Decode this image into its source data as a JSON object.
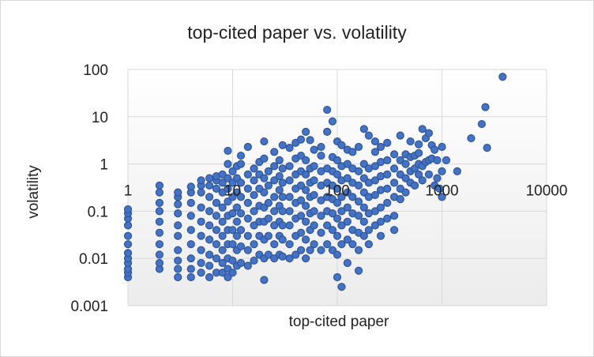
{
  "chart_data": {
    "type": "scatter",
    "title": "top-cited paper vs. volatility",
    "xlabel": "top-cited paper",
    "ylabel": "volatility",
    "xscale": "log",
    "yscale": "log",
    "xlim": [
      1,
      10000
    ],
    "ylim": [
      0.001,
      100
    ],
    "x_tick_labels": [
      "1",
      "10",
      "100",
      "1000",
      "10000"
    ],
    "y_tick_labels": [
      "0.001",
      "0.01",
      "0.1",
      "1",
      "10",
      "100"
    ],
    "grid": true,
    "legend": "none",
    "marker_color": "#4472C4",
    "marker_edge_color": "#2F5597",
    "points": [
      [
        1,
        0.004
      ],
      [
        1,
        0.005
      ],
      [
        1,
        0.006
      ],
      [
        1,
        0.008
      ],
      [
        1,
        0.01
      ],
      [
        1,
        0.013
      ],
      [
        1,
        0.02
      ],
      [
        1,
        0.03
      ],
      [
        1,
        0.05
      ],
      [
        1,
        0.07
      ],
      [
        1,
        0.09
      ],
      [
        1,
        0.11
      ],
      [
        2,
        0.006
      ],
      [
        2,
        0.008
      ],
      [
        2,
        0.012
      ],
      [
        2,
        0.02
      ],
      [
        2,
        0.035
      ],
      [
        2,
        0.06
      ],
      [
        2,
        0.1
      ],
      [
        2,
        0.15
      ],
      [
        2,
        0.25
      ],
      [
        2,
        0.35
      ],
      [
        3,
        0.004
      ],
      [
        3,
        0.006
      ],
      [
        3,
        0.009
      ],
      [
        3,
        0.015
      ],
      [
        3,
        0.03
      ],
      [
        3,
        0.05
      ],
      [
        3,
        0.09
      ],
      [
        3,
        0.14
      ],
      [
        3,
        0.2
      ],
      [
        3,
        0.25
      ],
      [
        4,
        0.004
      ],
      [
        4,
        0.006
      ],
      [
        4,
        0.01
      ],
      [
        4,
        0.02
      ],
      [
        4,
        0.04
      ],
      [
        4,
        0.08
      ],
      [
        4,
        0.15
      ],
      [
        4,
        0.25
      ],
      [
        4,
        0.33
      ],
      [
        5,
        0.005
      ],
      [
        5,
        0.008
      ],
      [
        5,
        0.015
      ],
      [
        5,
        0.03
      ],
      [
        5,
        0.06
      ],
      [
        5,
        0.12
      ],
      [
        5,
        0.25
      ],
      [
        5,
        0.35
      ],
      [
        5,
        0.45
      ],
      [
        6,
        0.004
      ],
      [
        6,
        0.007
      ],
      [
        6,
        0.012
      ],
      [
        6,
        0.025
      ],
      [
        6,
        0.05
      ],
      [
        6,
        0.1
      ],
      [
        6,
        0.2
      ],
      [
        6,
        0.35
      ],
      [
        6,
        0.5
      ],
      [
        7,
        0.005
      ],
      [
        7,
        0.01
      ],
      [
        7,
        0.02
      ],
      [
        7,
        0.04
      ],
      [
        7,
        0.08
      ],
      [
        7,
        0.15
      ],
      [
        7,
        0.3
      ],
      [
        7,
        0.45
      ],
      [
        7,
        0.55
      ],
      [
        8,
        0.005
      ],
      [
        8,
        0.008
      ],
      [
        8,
        0.015
      ],
      [
        8,
        0.03
      ],
      [
        8,
        0.06
      ],
      [
        8,
        0.12
      ],
      [
        8,
        0.25
      ],
      [
        8,
        0.4
      ],
      [
        8,
        0.6
      ],
      [
        9,
        0.004
      ],
      [
        9,
        0.006
      ],
      [
        9,
        0.01
      ],
      [
        9,
        0.02
      ],
      [
        9,
        0.04
      ],
      [
        9,
        0.08
      ],
      [
        9,
        0.16
      ],
      [
        9,
        0.3
      ],
      [
        9,
        0.5
      ],
      [
        9,
        1.0
      ],
      [
        9,
        1.9
      ],
      [
        10,
        0.005
      ],
      [
        10,
        0.009
      ],
      [
        10,
        0.02
      ],
      [
        10,
        0.04
      ],
      [
        10,
        0.09
      ],
      [
        10,
        0.2
      ],
      [
        10,
        0.4
      ],
      [
        10,
        0.7
      ],
      [
        11,
        0.007
      ],
      [
        11,
        0.015
      ],
      [
        11,
        0.03
      ],
      [
        11,
        0.06
      ],
      [
        11,
        0.12
      ],
      [
        11,
        0.25
      ],
      [
        11,
        0.5
      ],
      [
        11,
        0.9
      ],
      [
        12,
        0.008
      ],
      [
        12,
        0.018
      ],
      [
        12,
        0.04
      ],
      [
        12,
        0.09
      ],
      [
        12,
        0.2
      ],
      [
        12,
        0.4
      ],
      [
        12,
        1.0
      ],
      [
        12,
        1.5
      ],
      [
        14,
        0.007
      ],
      [
        14,
        0.015
      ],
      [
        14,
        0.03
      ],
      [
        14,
        0.07
      ],
      [
        14,
        0.15
      ],
      [
        14,
        0.3
      ],
      [
        14,
        0.6
      ],
      [
        14,
        2.3
      ],
      [
        16,
        0.009
      ],
      [
        16,
        0.02
      ],
      [
        16,
        0.05
      ],
      [
        16,
        0.1
      ],
      [
        16,
        0.22
      ],
      [
        16,
        0.45
      ],
      [
        16,
        0.8
      ],
      [
        18,
        0.012
      ],
      [
        18,
        0.03
      ],
      [
        18,
        0.06
      ],
      [
        18,
        0.13
      ],
      [
        18,
        0.3
      ],
      [
        18,
        0.6
      ],
      [
        18,
        1.1
      ],
      [
        20,
        0.0035
      ],
      [
        20,
        0.01
      ],
      [
        20,
        0.025
      ],
      [
        20,
        0.06
      ],
      [
        20,
        0.12
      ],
      [
        20,
        0.25
      ],
      [
        20,
        0.5
      ],
      [
        20,
        1.3
      ],
      [
        20,
        3.0
      ],
      [
        22,
        0.012
      ],
      [
        22,
        0.03
      ],
      [
        22,
        0.07
      ],
      [
        22,
        0.15
      ],
      [
        22,
        0.35
      ],
      [
        22,
        0.7
      ],
      [
        25,
        0.01
      ],
      [
        25,
        0.02
      ],
      [
        25,
        0.05
      ],
      [
        25,
        0.1
      ],
      [
        25,
        0.2
      ],
      [
        25,
        0.45
      ],
      [
        25,
        0.9
      ],
      [
        25,
        1.8
      ],
      [
        28,
        0.012
      ],
      [
        28,
        0.03
      ],
      [
        28,
        0.06
      ],
      [
        28,
        0.13
      ],
      [
        28,
        0.28
      ],
      [
        28,
        0.55
      ],
      [
        28,
        1.2
      ],
      [
        30,
        0.011
      ],
      [
        30,
        0.025
      ],
      [
        30,
        0.05
      ],
      [
        30,
        0.1
      ],
      [
        30,
        0.2
      ],
      [
        30,
        0.4
      ],
      [
        30,
        0.8
      ],
      [
        30,
        2.5
      ],
      [
        35,
        0.01
      ],
      [
        35,
        0.02
      ],
      [
        35,
        0.05
      ],
      [
        35,
        0.1
      ],
      [
        35,
        0.2
      ],
      [
        35,
        0.45
      ],
      [
        35,
        0.9
      ],
      [
        35,
        2.2
      ],
      [
        40,
        0.012
      ],
      [
        40,
        0.03
      ],
      [
        40,
        0.07
      ],
      [
        40,
        0.15
      ],
      [
        40,
        0.3
      ],
      [
        40,
        0.6
      ],
      [
        40,
        1.3
      ],
      [
        40,
        2.8
      ],
      [
        45,
        0.015
      ],
      [
        45,
        0.035
      ],
      [
        45,
        0.08
      ],
      [
        45,
        0.17
      ],
      [
        45,
        0.35
      ],
      [
        45,
        0.7
      ],
      [
        45,
        1.5
      ],
      [
        45,
        3.3
      ],
      [
        50,
        0.01
      ],
      [
        50,
        0.025
      ],
      [
        50,
        0.06
      ],
      [
        50,
        0.13
      ],
      [
        50,
        0.28
      ],
      [
        50,
        0.6
      ],
      [
        50,
        1.2
      ],
      [
        50,
        4.8
      ],
      [
        55,
        0.015
      ],
      [
        55,
        0.04
      ],
      [
        55,
        0.09
      ],
      [
        55,
        0.2
      ],
      [
        55,
        0.4
      ],
      [
        55,
        0.8
      ],
      [
        55,
        3.2
      ],
      [
        60,
        0.02
      ],
      [
        60,
        0.05
      ],
      [
        60,
        0.1
      ],
      [
        60,
        0.22
      ],
      [
        60,
        0.45
      ],
      [
        60,
        0.9
      ],
      [
        60,
        2.0
      ],
      [
        70,
        0.015
      ],
      [
        70,
        0.035
      ],
      [
        70,
        0.08
      ],
      [
        70,
        0.17
      ],
      [
        70,
        0.35
      ],
      [
        70,
        0.7
      ],
      [
        70,
        1.5
      ],
      [
        70,
        2.3
      ],
      [
        80,
        0.02
      ],
      [
        80,
        0.05
      ],
      [
        80,
        0.1
      ],
      [
        80,
        0.2
      ],
      [
        80,
        0.4
      ],
      [
        80,
        0.8
      ],
      [
        80,
        4.8
      ],
      [
        80,
        14.0
      ],
      [
        90,
        0.015
      ],
      [
        90,
        0.04
      ],
      [
        90,
        0.09
      ],
      [
        90,
        0.18
      ],
      [
        90,
        0.35
      ],
      [
        90,
        0.7
      ],
      [
        90,
        1.4
      ],
      [
        90,
        8.0
      ],
      [
        100,
        0.004
      ],
      [
        100,
        0.012
      ],
      [
        100,
        0.03
      ],
      [
        100,
        0.07
      ],
      [
        100,
        0.15
      ],
      [
        100,
        0.3
      ],
      [
        100,
        0.6
      ],
      [
        100,
        1.2
      ],
      [
        100,
        3.0
      ],
      [
        110,
        0.0025
      ],
      [
        110,
        0.02
      ],
      [
        110,
        0.05
      ],
      [
        110,
        0.1
      ],
      [
        110,
        0.2
      ],
      [
        110,
        0.45
      ],
      [
        110,
        0.9
      ],
      [
        110,
        2.5
      ],
      [
        125,
        0.008
      ],
      [
        125,
        0.025
      ],
      [
        125,
        0.06
      ],
      [
        125,
        0.12
      ],
      [
        125,
        0.25
      ],
      [
        125,
        0.5
      ],
      [
        125,
        1.0
      ],
      [
        125,
        2.0
      ],
      [
        140,
        0.02
      ],
      [
        140,
        0.04
      ],
      [
        140,
        0.09
      ],
      [
        140,
        0.2
      ],
      [
        140,
        0.4
      ],
      [
        140,
        0.8
      ],
      [
        140,
        1.8
      ],
      [
        160,
        0.0055
      ],
      [
        160,
        0.015
      ],
      [
        160,
        0.035
      ],
      [
        160,
        0.08
      ],
      [
        160,
        0.16
      ],
      [
        160,
        0.35
      ],
      [
        160,
        0.7
      ],
      [
        160,
        2.3
      ],
      [
        180,
        0.03
      ],
      [
        180,
        0.06
      ],
      [
        180,
        0.12
      ],
      [
        180,
        0.25
      ],
      [
        180,
        0.5
      ],
      [
        180,
        1.0
      ],
      [
        180,
        5.5
      ],
      [
        200,
        0.02
      ],
      [
        200,
        0.04
      ],
      [
        200,
        0.09
      ],
      [
        200,
        0.2
      ],
      [
        200,
        0.4
      ],
      [
        200,
        0.8
      ],
      [
        200,
        4.0
      ],
      [
        230,
        0.05
      ],
      [
        230,
        0.1
      ],
      [
        230,
        0.22
      ],
      [
        230,
        0.45
      ],
      [
        230,
        0.9
      ],
      [
        230,
        1.8
      ],
      [
        230,
        3.0
      ],
      [
        260,
        0.03
      ],
      [
        260,
        0.06
      ],
      [
        260,
        0.12
      ],
      [
        260,
        0.28
      ],
      [
        260,
        0.55
      ],
      [
        260,
        1.1
      ],
      [
        260,
        2.3
      ],
      [
        300,
        0.07
      ],
      [
        300,
        0.15
      ],
      [
        300,
        0.3
      ],
      [
        300,
        0.6
      ],
      [
        300,
        1.2
      ],
      [
        300,
        2.8
      ],
      [
        350,
        0.04
      ],
      [
        350,
        0.08
      ],
      [
        350,
        0.2
      ],
      [
        350,
        0.4
      ],
      [
        350,
        0.8
      ],
      [
        350,
        1.6
      ],
      [
        400,
        0.18
      ],
      [
        400,
        0.3
      ],
      [
        400,
        0.6
      ],
      [
        400,
        1.2
      ],
      [
        400,
        4.0
      ],
      [
        450,
        0.25
      ],
      [
        450,
        0.5
      ],
      [
        450,
        1.0
      ],
      [
        450,
        1.6
      ],
      [
        500,
        0.4
      ],
      [
        500,
        0.7
      ],
      [
        500,
        1.4
      ],
      [
        500,
        3.0
      ],
      [
        550,
        0.35
      ],
      [
        550,
        0.8
      ],
      [
        550,
        1.5
      ],
      [
        600,
        0.6
      ],
      [
        600,
        1.0
      ],
      [
        600,
        1.7
      ],
      [
        600,
        2.6
      ],
      [
        650,
        0.45
      ],
      [
        650,
        0.9
      ],
      [
        650,
        5.5
      ],
      [
        700,
        1.1
      ],
      [
        700,
        3.5
      ],
      [
        750,
        0.6
      ],
      [
        750,
        1.2
      ],
      [
        750,
        4.5
      ],
      [
        800,
        1.3
      ],
      [
        800,
        2.5
      ],
      [
        850,
        0.35
      ],
      [
        850,
        2.0
      ],
      [
        900,
        0.5
      ],
      [
        900,
        1.2
      ],
      [
        950,
        0.3
      ],
      [
        1000,
        0.2
      ],
      [
        1000,
        0.7
      ],
      [
        1000,
        2.3
      ],
      [
        1100,
        1.2
      ],
      [
        1400,
        0.7
      ],
      [
        1900,
        3.5
      ],
      [
        2400,
        7.0
      ],
      [
        2600,
        16.0
      ],
      [
        2700,
        2.2
      ],
      [
        3800,
        70.0
      ]
    ]
  }
}
